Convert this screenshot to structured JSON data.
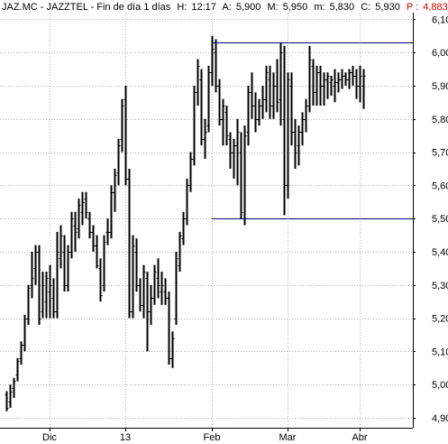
{
  "header": {
    "symbol": "JAZ.MC - JAZZTEL - Fin de día 1 días",
    "h_label": "H:",
    "h_value": "12:17",
    "a_label": "A:",
    "a_value": "5,900",
    "m_label": "M:",
    "m_value": "5,950",
    "min_label": "m:",
    "min_value": "5,830",
    "c_label": "C:",
    "c_value": "5,930",
    "p_label": "P :",
    "p_value": "4,883",
    "trail": "\\",
    "p_color": "#e00000"
  },
  "chart_data": {
    "type": "ohlc",
    "y_tick_labels": [
      "6,10",
      "6,00",
      "5,90",
      "5,80",
      "5,70",
      "5,60",
      "5,50",
      "5,40",
      "5,30",
      "5,20",
      "5,10",
      "5,00",
      "4,90"
    ],
    "y_ticks": [
      6.1,
      6.0,
      5.9,
      5.8,
      5.7,
      5.6,
      5.5,
      5.4,
      5.3,
      5.2,
      5.1,
      5.0,
      4.9
    ],
    "ylim": [
      4.87,
      6.12
    ],
    "x_tick_labels": [
      "Dic",
      "13",
      "Feb",
      "Mar",
      "Abr"
    ],
    "x_tick_index": [
      12,
      33,
      57,
      78,
      98
    ],
    "n_bars": 100,
    "grid": true,
    "resistance": 6.03,
    "support": 5.5,
    "bar_color": "#000000",
    "line_color": "#00007f",
    "bars": [
      [
        4.97,
        4.98,
        4.92,
        4.93
      ],
      [
        4.95,
        5.0,
        4.93,
        4.98
      ],
      [
        4.99,
        5.02,
        4.96,
        5.01
      ],
      [
        5.03,
        5.08,
        5.01,
        5.07
      ],
      [
        5.08,
        5.13,
        5.06,
        5.12
      ],
      [
        5.12,
        5.21,
        5.1,
        5.2
      ],
      [
        5.2,
        5.3,
        5.18,
        5.29
      ],
      [
        5.3,
        5.4,
        5.26,
        5.32
      ],
      [
        5.35,
        5.42,
        5.3,
        5.4
      ],
      [
        5.4,
        5.42,
        5.18,
        5.2
      ],
      [
        5.22,
        5.34,
        5.2,
        5.3
      ],
      [
        5.25,
        5.34,
        5.2,
        5.32
      ],
      [
        5.28,
        5.36,
        5.2,
        5.3
      ],
      [
        5.26,
        5.32,
        5.2,
        5.22
      ],
      [
        5.22,
        5.46,
        5.2,
        5.4
      ],
      [
        5.38,
        5.48,
        5.35,
        5.45
      ],
      [
        5.4,
        5.45,
        5.28,
        5.3
      ],
      [
        5.3,
        5.42,
        5.28,
        5.4
      ],
      [
        5.4,
        5.52,
        5.38,
        5.5
      ],
      [
        5.48,
        5.52,
        5.4,
        5.46
      ],
      [
        5.47,
        5.56,
        5.44,
        5.54
      ],
      [
        5.52,
        5.58,
        5.48,
        5.55
      ],
      [
        5.56,
        5.58,
        5.5,
        5.52
      ],
      [
        5.5,
        5.52,
        5.44,
        5.46
      ],
      [
        5.46,
        5.48,
        5.4,
        5.42
      ],
      [
        5.42,
        5.45,
        5.35,
        5.36
      ],
      [
        5.35,
        5.38,
        5.25,
        5.27
      ],
      [
        5.3,
        5.45,
        5.28,
        5.43
      ],
      [
        5.46,
        5.5,
        5.42,
        5.46
      ],
      [
        5.46,
        5.6,
        5.44,
        5.58
      ],
      [
        5.58,
        5.65,
        5.52,
        5.63
      ],
      [
        5.64,
        5.74,
        5.6,
        5.72
      ],
      [
        5.74,
        5.86,
        5.7,
        5.84
      ],
      [
        5.86,
        5.9,
        5.6,
        5.62
      ],
      [
        5.62,
        5.65,
        5.2,
        5.22
      ],
      [
        5.22,
        5.45,
        5.2,
        5.42
      ],
      [
        5.4,
        5.44,
        5.28,
        5.3
      ],
      [
        5.3,
        5.32,
        5.22,
        5.24
      ],
      [
        5.24,
        5.36,
        5.2,
        5.34
      ],
      [
        5.32,
        5.34,
        5.1,
        5.22
      ],
      [
        5.22,
        5.3,
        5.18,
        5.26
      ],
      [
        5.26,
        5.36,
        5.24,
        5.34
      ],
      [
        5.32,
        5.38,
        5.26,
        5.3
      ],
      [
        5.28,
        5.34,
        5.24,
        5.3
      ],
      [
        5.28,
        5.32,
        5.24,
        5.26
      ],
      [
        5.26,
        5.28,
        5.06,
        5.08
      ],
      [
        5.08,
        5.16,
        5.05,
        5.14
      ],
      [
        5.2,
        5.4,
        5.18,
        5.38
      ],
      [
        5.36,
        5.46,
        5.34,
        5.45
      ],
      [
        5.44,
        5.52,
        5.42,
        5.5
      ],
      [
        5.5,
        5.62,
        5.48,
        5.6
      ],
      [
        5.6,
        5.7,
        5.58,
        5.68
      ],
      [
        5.68,
        5.9,
        5.66,
        5.88
      ],
      [
        5.88,
        5.98,
        5.84,
        5.96
      ],
      [
        5.92,
        5.95,
        5.72,
        5.74
      ],
      [
        5.74,
        5.8,
        5.68,
        5.76
      ],
      [
        5.78,
        5.96,
        5.76,
        5.94
      ],
      [
        5.94,
        6.05,
        5.9,
        6.01
      ],
      [
        6.0,
        6.04,
        5.88,
        5.9
      ],
      [
        5.9,
        5.92,
        5.78,
        5.8
      ],
      [
        5.8,
        5.86,
        5.72,
        5.84
      ],
      [
        5.82,
        5.84,
        5.72,
        5.75
      ],
      [
        5.74,
        5.76,
        5.65,
        5.7
      ],
      [
        5.7,
        5.74,
        5.62,
        5.72
      ],
      [
        5.72,
        5.8,
        5.6,
        5.76
      ],
      [
        5.7,
        5.76,
        5.5,
        5.52
      ],
      [
        5.5,
        5.78,
        5.48,
        5.75
      ],
      [
        5.76,
        5.9,
        5.72,
        5.88
      ],
      [
        5.88,
        5.94,
        5.8,
        5.84
      ],
      [
        5.84,
        5.88,
        5.76,
        5.8
      ],
      [
        5.8,
        5.86,
        5.78,
        5.84
      ],
      [
        5.84,
        5.9,
        5.8,
        5.86
      ],
      [
        5.86,
        5.96,
        5.82,
        5.94
      ],
      [
        5.92,
        5.96,
        5.8,
        5.84
      ],
      [
        5.84,
        5.94,
        5.8,
        5.9
      ],
      [
        5.9,
        5.98,
        5.82,
        5.85
      ],
      [
        5.86,
        6.03,
        5.78,
        6.0
      ],
      [
        5.8,
        6.02,
        5.51,
        5.6
      ],
      [
        5.6,
        5.94,
        5.56,
        5.92
      ],
      [
        5.9,
        5.94,
        5.72,
        5.76
      ],
      [
        5.76,
        5.8,
        5.65,
        5.7
      ],
      [
        5.72,
        5.78,
        5.66,
        5.76
      ],
      [
        5.76,
        5.82,
        5.72,
        5.8
      ],
      [
        5.8,
        5.86,
        5.76,
        5.84
      ],
      [
        5.84,
        6.02,
        5.82,
        5.98
      ],
      [
        5.96,
        5.98,
        5.84,
        5.88
      ],
      [
        5.88,
        5.96,
        5.84,
        5.94
      ],
      [
        5.94,
        5.96,
        5.84,
        5.9
      ],
      [
        5.9,
        5.94,
        5.84,
        5.92
      ],
      [
        5.92,
        5.94,
        5.86,
        5.93
      ],
      [
        5.91,
        5.93,
        5.87,
        5.92
      ],
      [
        5.9,
        5.95,
        5.85,
        5.91
      ],
      [
        5.91,
        5.94,
        5.88,
        5.92
      ],
      [
        5.92,
        5.95,
        5.89,
        5.93
      ],
      [
        5.93,
        5.94,
        5.9,
        5.92
      ],
      [
        5.92,
        5.95,
        5.89,
        5.94
      ],
      [
        5.94,
        5.96,
        5.9,
        5.93
      ],
      [
        5.93,
        5.95,
        5.86,
        5.9
      ],
      [
        5.9,
        5.96,
        5.85,
        5.93
      ],
      [
        5.9,
        5.95,
        5.83,
        5.93
      ]
    ]
  }
}
